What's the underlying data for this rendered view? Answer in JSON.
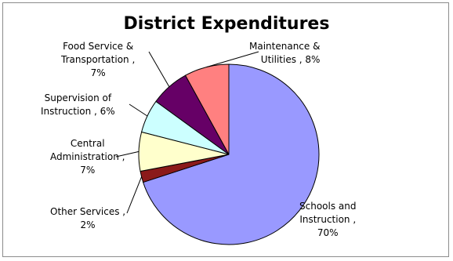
{
  "chart_data": {
    "type": "pie",
    "title": "District Expenditures",
    "categories": [
      "Schools and Instruction",
      "Other Services",
      "Central Administration",
      "Supervision of Instruction",
      "Food Service & Transportation",
      "Maintenance & Utilities"
    ],
    "values": [
      70,
      2,
      7,
      6,
      7,
      8
    ],
    "unit": "%",
    "colors": [
      "#9999ff",
      "#8b1a1a",
      "#ffffcc",
      "#ccffff",
      "#660066",
      "#ff8080"
    ],
    "labels": [
      {
        "lines": [
          "Schools and",
          "Instruction ,",
          "70%"
        ]
      },
      {
        "lines": [
          "Other Services ,",
          "2%"
        ]
      },
      {
        "lines": [
          "Central",
          "Administration ,",
          "7%"
        ]
      },
      {
        "lines": [
          "Supervision of",
          "Instruction , 6%"
        ]
      },
      {
        "lines": [
          "Food Service &",
          "Transportation ,",
          "7%"
        ]
      },
      {
        "lines": [
          "Maintenance &",
          "Utilities , 8%"
        ]
      }
    ],
    "legend": "none",
    "grid": false
  }
}
